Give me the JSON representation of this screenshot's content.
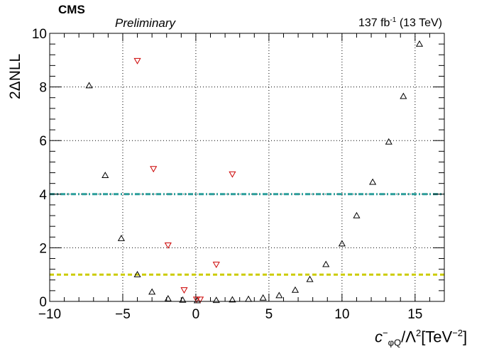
{
  "header": {
    "experiment": "CMS",
    "status": "Preliminary",
    "luminosity_value": "137 fb",
    "luminosity_exp": "-1",
    "luminosity_energy": "(13 TeV)"
  },
  "chart_data": {
    "type": "scatter",
    "ylabel": "2ΔNLL",
    "xlabel_parts": {
      "c": "c",
      "c_sup": "−",
      "c_sub": "φQ",
      "slash": "/Λ",
      "lambda_sup": "2",
      "unit": "[TeV",
      "unit_sup": "−2",
      "unit_close": "]"
    },
    "xlim": [
      -10,
      17
    ],
    "ylim": [
      0,
      10
    ],
    "xticks": [
      -10,
      -5,
      0,
      5,
      10,
      15
    ],
    "xtick_labels": [
      "−10",
      "−5",
      "0",
      "5",
      "10",
      "15"
    ],
    "yticks": [
      0,
      2,
      4,
      6,
      8,
      10
    ],
    "ytick_labels": [
      "0",
      "2",
      "4",
      "6",
      "8",
      "10"
    ],
    "grid": true,
    "hlines": [
      {
        "y": 4,
        "color": "#2a9d9a",
        "style": "dash-dot"
      },
      {
        "y": 1,
        "color": "#cccc00",
        "style": "dashed"
      }
    ],
    "series": [
      {
        "marker": "triangle-up",
        "color": "#000000",
        "points": [
          [
            -7.3,
            8.05
          ],
          [
            -6.2,
            4.7
          ],
          [
            -5.1,
            2.35
          ],
          [
            -4.0,
            1.0
          ],
          [
            -3.0,
            0.35
          ],
          [
            -1.9,
            0.1
          ],
          [
            -0.9,
            0.05
          ],
          [
            0.1,
            0.03
          ],
          [
            1.4,
            0.04
          ],
          [
            2.5,
            0.06
          ],
          [
            3.6,
            0.08
          ],
          [
            4.6,
            0.13
          ],
          [
            5.7,
            0.22
          ],
          [
            6.8,
            0.42
          ],
          [
            7.8,
            0.82
          ],
          [
            8.9,
            1.38
          ],
          [
            10.0,
            2.15
          ],
          [
            11.0,
            3.2
          ],
          [
            12.1,
            4.45
          ],
          [
            13.2,
            5.95
          ],
          [
            14.2,
            7.65
          ],
          [
            15.3,
            9.6
          ]
        ]
      },
      {
        "marker": "triangle-down",
        "color": "#cc0000",
        "points": [
          [
            -4.0,
            8.98
          ],
          [
            -2.9,
            4.95
          ],
          [
            -1.9,
            2.1
          ],
          [
            -0.8,
            0.43
          ],
          [
            0.05,
            0.08
          ],
          [
            0.3,
            0.08
          ],
          [
            1.4,
            1.38
          ],
          [
            2.5,
            4.75
          ]
        ]
      }
    ]
  }
}
